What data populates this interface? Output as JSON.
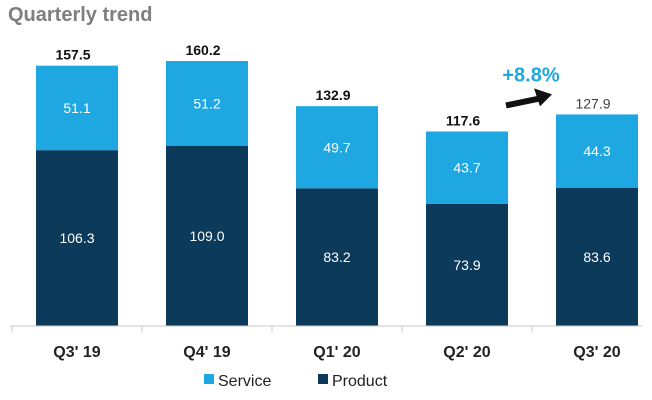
{
  "chart_data": {
    "type": "bar",
    "stacked": true,
    "title": "Quarterly trend",
    "categories": [
      "Q3' 19",
      "Q4' 19",
      "Q1' 20",
      "Q2' 20",
      "Q3' 20"
    ],
    "series": [
      {
        "name": "Product",
        "values": [
          106.3,
          109.0,
          83.2,
          73.9,
          83.6
        ],
        "color": "#0b3a5b"
      },
      {
        "name": "Service",
        "values": [
          51.1,
          51.2,
          49.7,
          43.7,
          44.3
        ],
        "color": "#1ea7e1"
      }
    ],
    "totals": [
      157.5,
      160.2,
      132.9,
      117.6,
      127.9
    ],
    "annotation": {
      "text": "+8.8%",
      "from_category": "Q2' 20",
      "to_category": "Q3' 20",
      "color": "#1ea7e1"
    },
    "ylim": [
      0,
      160.2
    ],
    "grid": false,
    "legend": {
      "position": "bottom",
      "order": [
        "Service",
        "Product"
      ]
    },
    "xlabel": "",
    "ylabel": ""
  }
}
